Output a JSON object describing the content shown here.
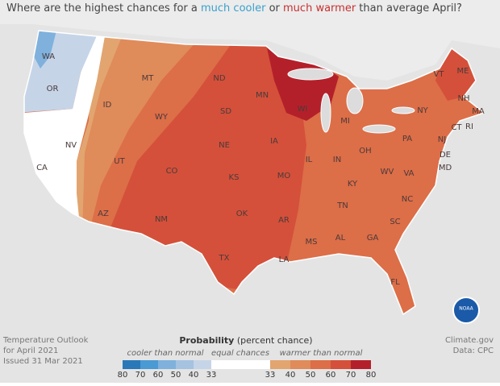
{
  "title": {
    "prefix": "Where are the highest chances for a ",
    "cool": "much cooler",
    "mid": " or ",
    "warm": "much warmer",
    "suffix": " than average April?"
  },
  "states": [
    "WA",
    "OR",
    "CA",
    "NV",
    "ID",
    "MT",
    "WY",
    "UT",
    "AZ",
    "CO",
    "NM",
    "ND",
    "SD",
    "NE",
    "KS",
    "OK",
    "TX",
    "MN",
    "IA",
    "MO",
    "AR",
    "LA",
    "WI",
    "IL",
    "MI",
    "IN",
    "OH",
    "KY",
    "TN",
    "MS",
    "AL",
    "GA",
    "FL",
    "SC",
    "NC",
    "VA",
    "WV",
    "PA",
    "NY",
    "MD",
    "DE",
    "NJ",
    "CT",
    "RI",
    "MA",
    "NH",
    "VT",
    "ME"
  ],
  "footer_left": [
    "Temperature Outlook",
    "for April 2021",
    "Issued 31 Mar 2021"
  ],
  "footer_right": [
    "Climate.gov",
    "Data: CPC"
  ],
  "logo": "NOAA",
  "legend": {
    "title": "Probability",
    "subtitle": "(percent chance)",
    "cooler": "cooler than normal",
    "equal": "equal chances",
    "warmer": "warmer than normal",
    "cool_ticks": [
      80,
      70,
      60,
      50,
      40,
      33
    ],
    "warm_ticks": [
      33,
      40,
      50,
      60,
      70,
      80
    ],
    "cool_colors": [
      "#2a78b8",
      "#4a9ad3",
      "#7fb1dc",
      "#a5c2e1",
      "#c6d4e8"
    ],
    "warm_colors": [
      "#e2a570",
      "#e08b5a",
      "#dc6e48",
      "#d4503a",
      "#b4202a"
    ]
  }
}
